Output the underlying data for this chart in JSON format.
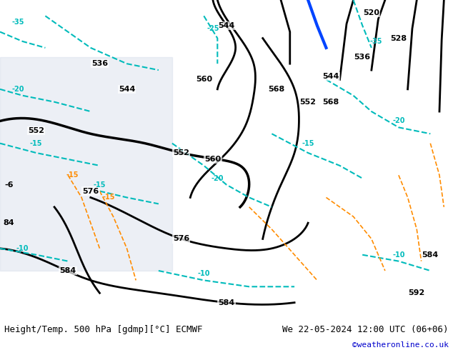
{
  "title_left": "Height/Temp. 500 hPa [gdmp][°C] ECMWF",
  "title_right": "We 22-05-2024 12:00 UTC (06+06)",
  "credit": "©weatheronline.co.uk",
  "bg_color": "#c8e6a0",
  "map_bg": "#c8e6a0",
  "figsize": [
    6.34,
    4.9
  ],
  "dpi": 100,
  "bottom_bar_height": 0.08,
  "bottom_bar_color": "#ffffff",
  "title_fontsize": 9,
  "credit_fontsize": 8,
  "credit_color": "#0000cc"
}
